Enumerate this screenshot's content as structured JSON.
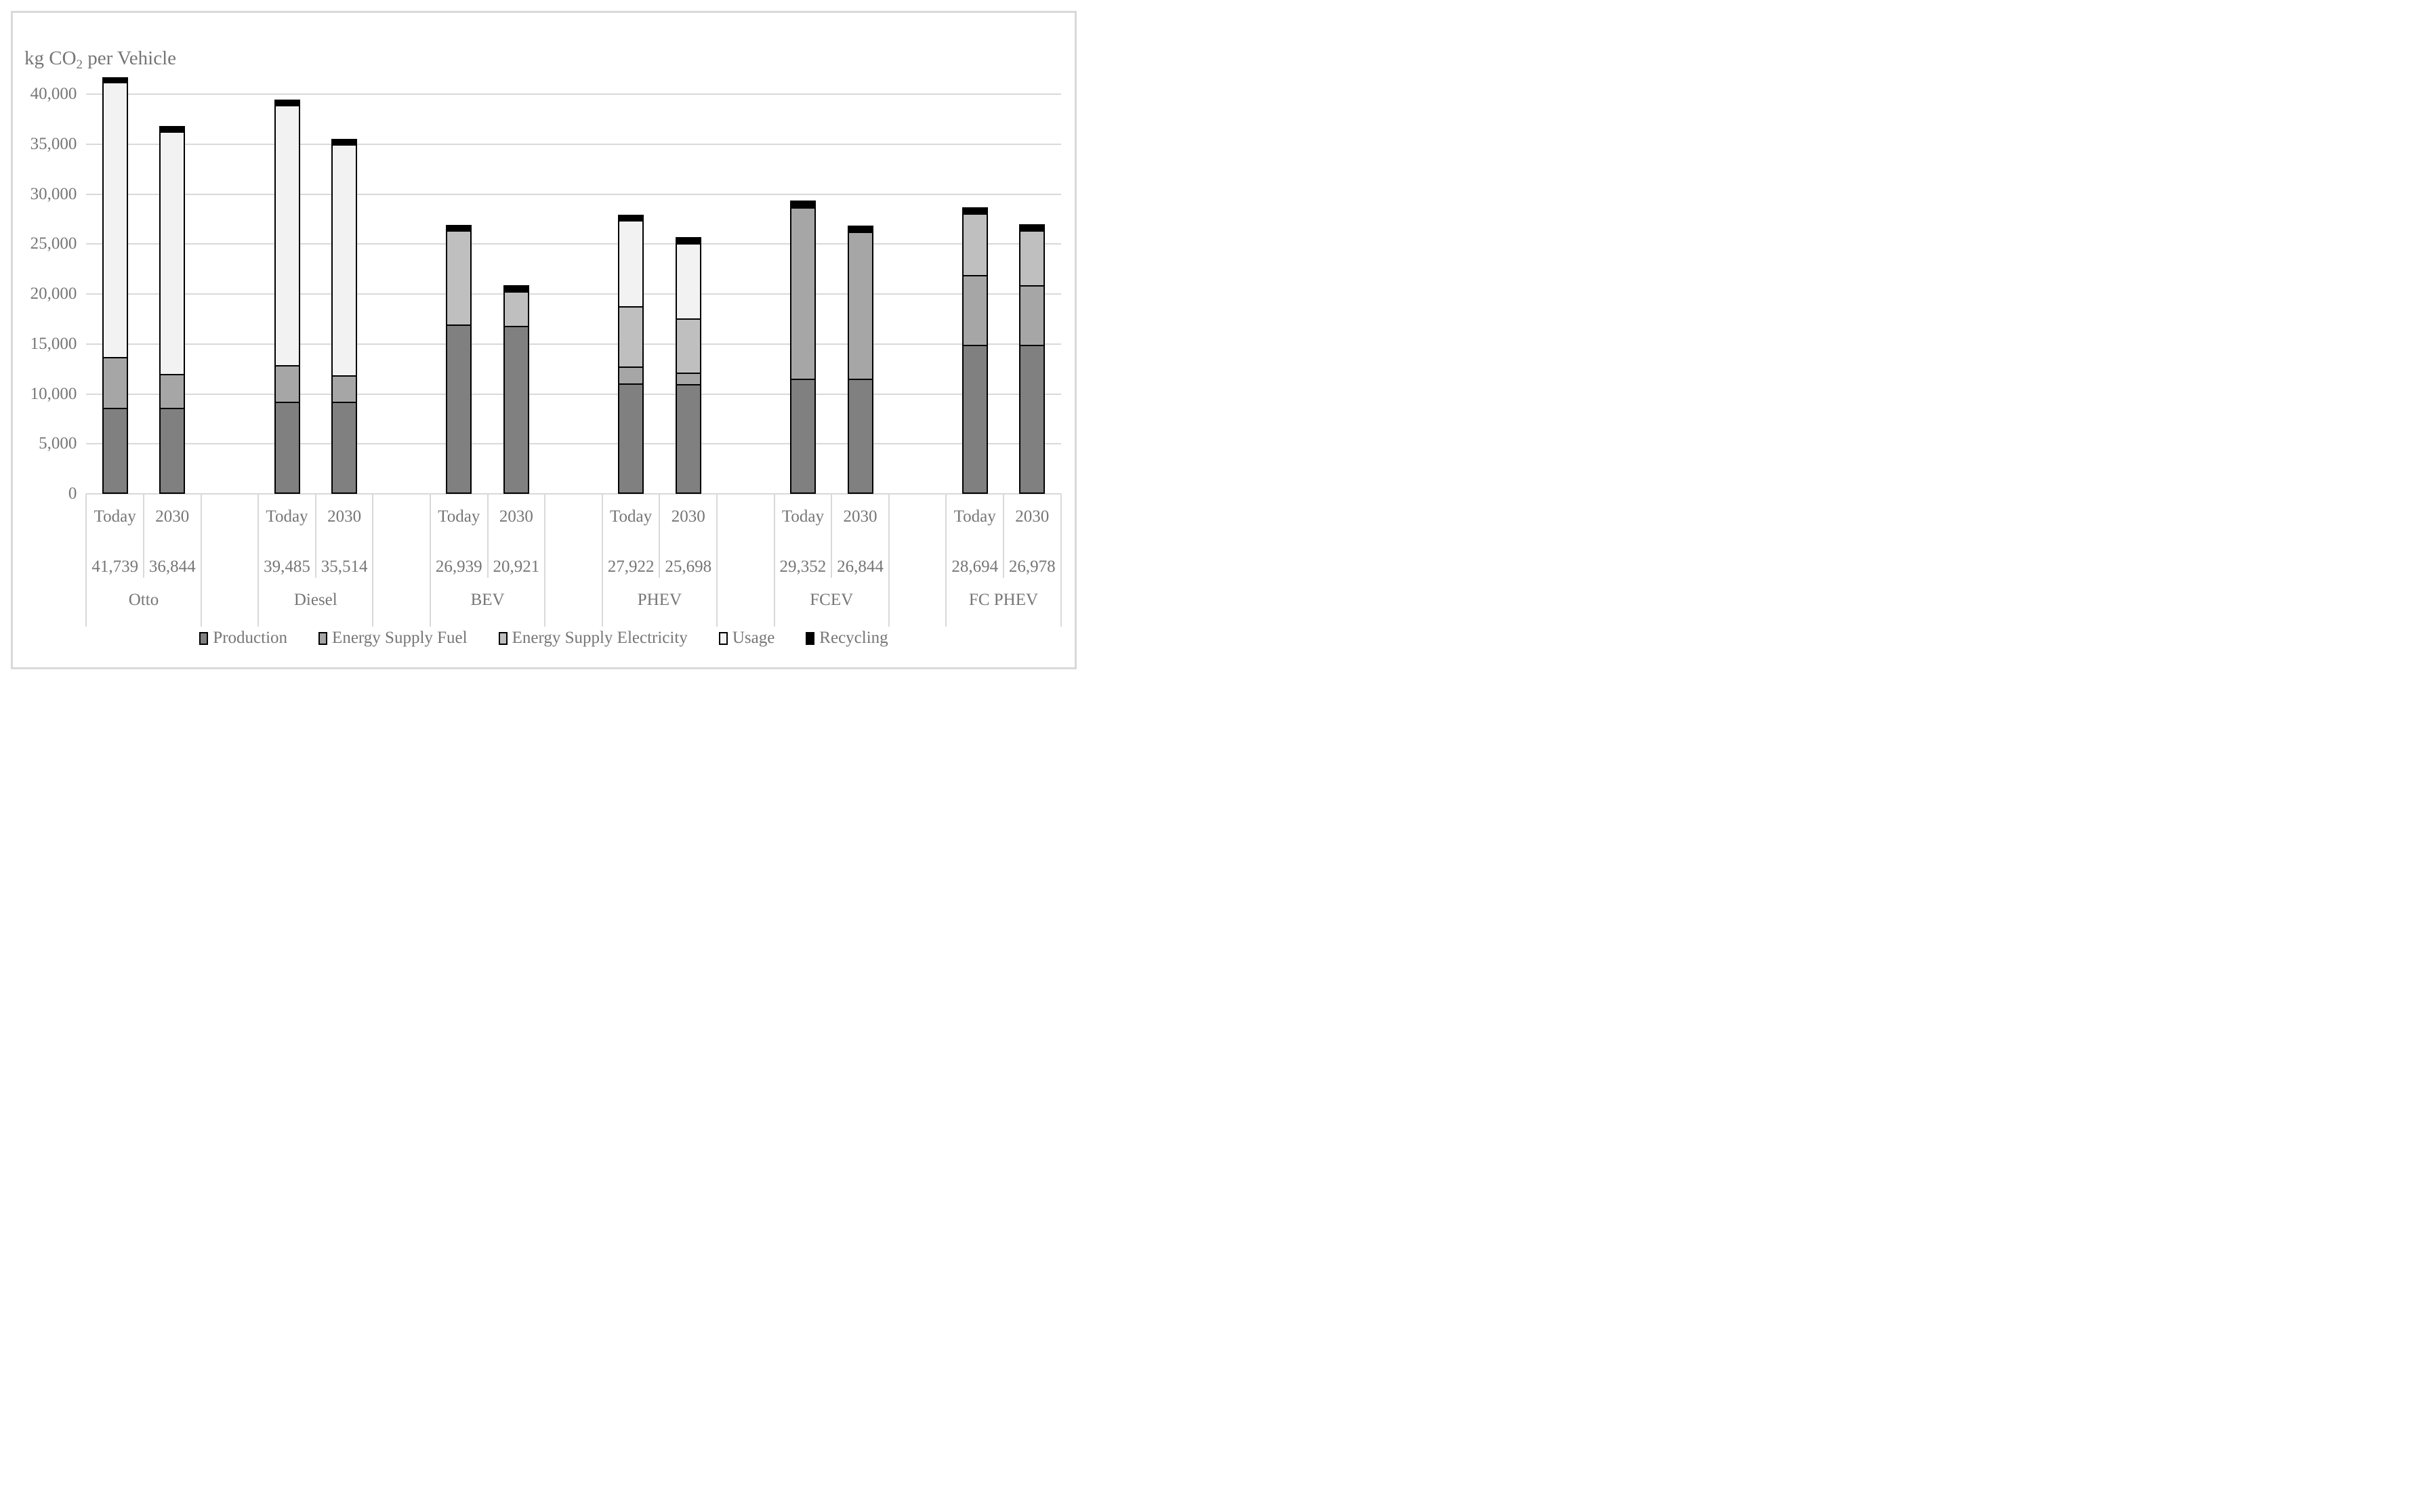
{
  "title": {
    "pre": "kg CO",
    "sub": "2",
    "post": " per Vehicle"
  },
  "y_axis": {
    "tick_labels": [
      "40,000",
      "35,000",
      "30,000",
      "25,000",
      "20,000",
      "15,000",
      "10,000",
      "5,000",
      "0"
    ],
    "tick_values": [
      40000,
      35000,
      30000,
      25000,
      20000,
      15000,
      10000,
      5000,
      0
    ]
  },
  "x_axis": {
    "period_labels": [
      "Today",
      "2030"
    ],
    "group_labels": [
      "Otto",
      "Diesel",
      "BEV",
      "PHEV",
      "FCEV",
      "FC PHEV"
    ]
  },
  "legend": {
    "items": [
      {
        "key": "production",
        "label": "Production",
        "color": "#808080"
      },
      {
        "key": "fuel",
        "label": "Energy Supply Fuel",
        "color": "#A6A6A6"
      },
      {
        "key": "electricity",
        "label": "Energy Supply Electricity",
        "color": "#BFBFBF"
      },
      {
        "key": "usage",
        "label": "Usage",
        "color": "#F2F2F2"
      },
      {
        "key": "recycling",
        "label": "Recycling",
        "color": "#000000"
      }
    ]
  },
  "colors": {
    "grid": "#D9D9D9",
    "frame_border": "#D9D9D9",
    "axis_text": "#767676",
    "bar_border": "#000000",
    "background": "#FFFFFF"
  },
  "chart_data": {
    "type": "bar",
    "stacked": true,
    "title": "kg CO2 per Vehicle",
    "ylabel": "kg CO2 per Vehicle",
    "xlabel": "",
    "ylim": [
      0,
      42500
    ],
    "ytick_step": 5000,
    "grid": true,
    "legend_position": "bottom",
    "series_order": [
      "Production",
      "Energy Supply Fuel",
      "Energy Supply Electricity",
      "Usage",
      "Recycling"
    ],
    "groups": [
      {
        "name": "Otto",
        "bars": [
          {
            "label": "Today",
            "total": 41739,
            "total_label": "41,739",
            "segments": {
              "production": 8500,
              "fuel": 5000,
              "electricity": 0,
              "usage": 27839,
              "recycling": 400
            }
          },
          {
            "label": "2030",
            "total": 36844,
            "total_label": "36,844",
            "segments": {
              "production": 8500,
              "fuel": 3300,
              "electricity": 0,
              "usage": 24644,
              "recycling": 400
            }
          }
        ]
      },
      {
        "name": "Diesel",
        "bars": [
          {
            "label": "Today",
            "total": 39485,
            "total_label": "39,485",
            "segments": {
              "production": 9100,
              "fuel": 3600,
              "electricity": 0,
              "usage": 26385,
              "recycling": 400
            }
          },
          {
            "label": "2030",
            "total": 35514,
            "total_label": "35,514",
            "segments": {
              "production": 9100,
              "fuel": 2600,
              "electricity": 0,
              "usage": 23414,
              "recycling": 400
            }
          }
        ]
      },
      {
        "name": "BEV",
        "bars": [
          {
            "label": "Today",
            "total": 26939,
            "total_label": "26,939",
            "segments": {
              "production": 17000,
              "fuel": 0,
              "electricity": 9539,
              "usage": 0,
              "recycling": 400
            }
          },
          {
            "label": "2030",
            "total": 20921,
            "total_label": "20,921",
            "segments": {
              "production": 17000,
              "fuel": 0,
              "electricity": 3421,
              "usage": 0,
              "recycling": 500
            }
          }
        ]
      },
      {
        "name": "PHEV",
        "bars": [
          {
            "label": "Today",
            "total": 27922,
            "total_label": "27,922",
            "segments": {
              "production": 11100,
              "fuel": 1600,
              "electricity": 6100,
              "usage": 8700,
              "recycling": 422
            }
          },
          {
            "label": "2030",
            "total": 25698,
            "total_label": "25,698",
            "segments": {
              "production": 11100,
              "fuel": 1000,
              "electricity": 5450,
              "usage": 7650,
              "recycling": 498
            }
          }
        ]
      },
      {
        "name": "FCEV",
        "bars": [
          {
            "label": "Today",
            "total": 29352,
            "total_label": "29,352",
            "segments": {
              "production": 11500,
              "fuel": 17352,
              "electricity": 0,
              "usage": 0,
              "recycling": 500
            }
          },
          {
            "label": "2030",
            "total": 26844,
            "total_label": "26,844",
            "segments": {
              "production": 11500,
              "fuel": 14844,
              "electricity": 0,
              "usage": 0,
              "recycling": 500
            }
          }
        ]
      },
      {
        "name": "FC PHEV",
        "bars": [
          {
            "label": "Today",
            "total": 28694,
            "total_label": "28,694",
            "segments": {
              "production": 15000,
              "fuel": 7000,
              "electricity": 6194,
              "usage": 0,
              "recycling": 500
            }
          },
          {
            "label": "2030",
            "total": 26978,
            "total_label": "26,978",
            "segments": {
              "production": 15000,
              "fuel": 6000,
              "electricity": 5478,
              "usage": 0,
              "recycling": 500
            }
          }
        ]
      }
    ],
    "segment_colors": {
      "production": "#808080",
      "fuel": "#A6A6A6",
      "electricity": "#BFBFBF",
      "usage": "#F2F2F2",
      "recycling": "#000000"
    }
  }
}
